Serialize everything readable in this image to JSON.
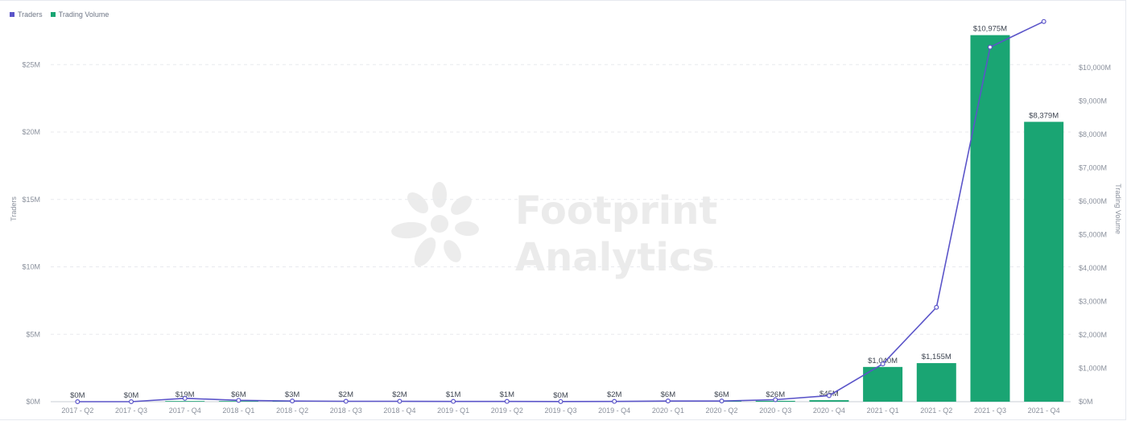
{
  "legend": {
    "traders": {
      "label": "Traders",
      "color": "#5b55c9"
    },
    "volume": {
      "label": "Trading Volume",
      "color": "#1aa573"
    }
  },
  "watermark": {
    "line1": "Footprint",
    "line2": "Analytics"
  },
  "chart_data": {
    "type": "bar",
    "categories": [
      "2017 - Q2",
      "2017 - Q3",
      "2017 - Q4",
      "2018 - Q1",
      "2018 - Q2",
      "2018 - Q3",
      "2018 - Q4",
      "2019 - Q1",
      "2019 - Q2",
      "2019 - Q3",
      "2019 - Q4",
      "2020 - Q1",
      "2020 - Q2",
      "2020 - Q3",
      "2020 - Q4",
      "2021 - Q1",
      "2021 - Q2",
      "2021 - Q3",
      "2021 - Q4"
    ],
    "series": [
      {
        "name": "Trading Volume",
        "type": "bar",
        "axis": "right",
        "color": "#1aa573",
        "values": [
          0,
          0,
          19,
          6,
          3,
          2,
          2,
          1,
          1,
          0,
          2,
          6,
          6,
          26,
          45,
          1040,
          1155,
          10975,
          8379
        ],
        "labels": [
          "$0M",
          "$0M",
          "$19M",
          "$6M",
          "$3M",
          "$2M",
          "$2M",
          "$1M",
          "$1M",
          "$0M",
          "$2M",
          "$6M",
          "$6M",
          "$26M",
          "$45M",
          "$1,040M",
          "$1,155M",
          "$10,975M",
          "$8,379M"
        ]
      },
      {
        "name": "Traders",
        "type": "line",
        "axis": "left",
        "color": "#5b55c9",
        "values": [
          0,
          0,
          0.25,
          0.1,
          0.05,
          0.03,
          0.03,
          0.02,
          0.02,
          0.01,
          0.02,
          0.05,
          0.05,
          0.15,
          0.45,
          2.8,
          7,
          26.3,
          28.2
        ]
      }
    ],
    "left_axis": {
      "label": "Traders",
      "ticks": [
        "$0M",
        "$5M",
        "$10M",
        "$15M",
        "$20M",
        "$25M"
      ],
      "range": [
        0,
        28.6
      ]
    },
    "right_axis": {
      "label": "Trading Volume",
      "ticks": [
        "$0M",
        "$1,000M",
        "$2,000M",
        "$3,000M",
        "$4,000M",
        "$5,000M",
        "$6,000M",
        "$7,000M",
        "$8,000M",
        "$9,000M",
        "$10,000M"
      ],
      "range": [
        0,
        11545
      ]
    },
    "grid": true,
    "legend_position": "top-left"
  }
}
